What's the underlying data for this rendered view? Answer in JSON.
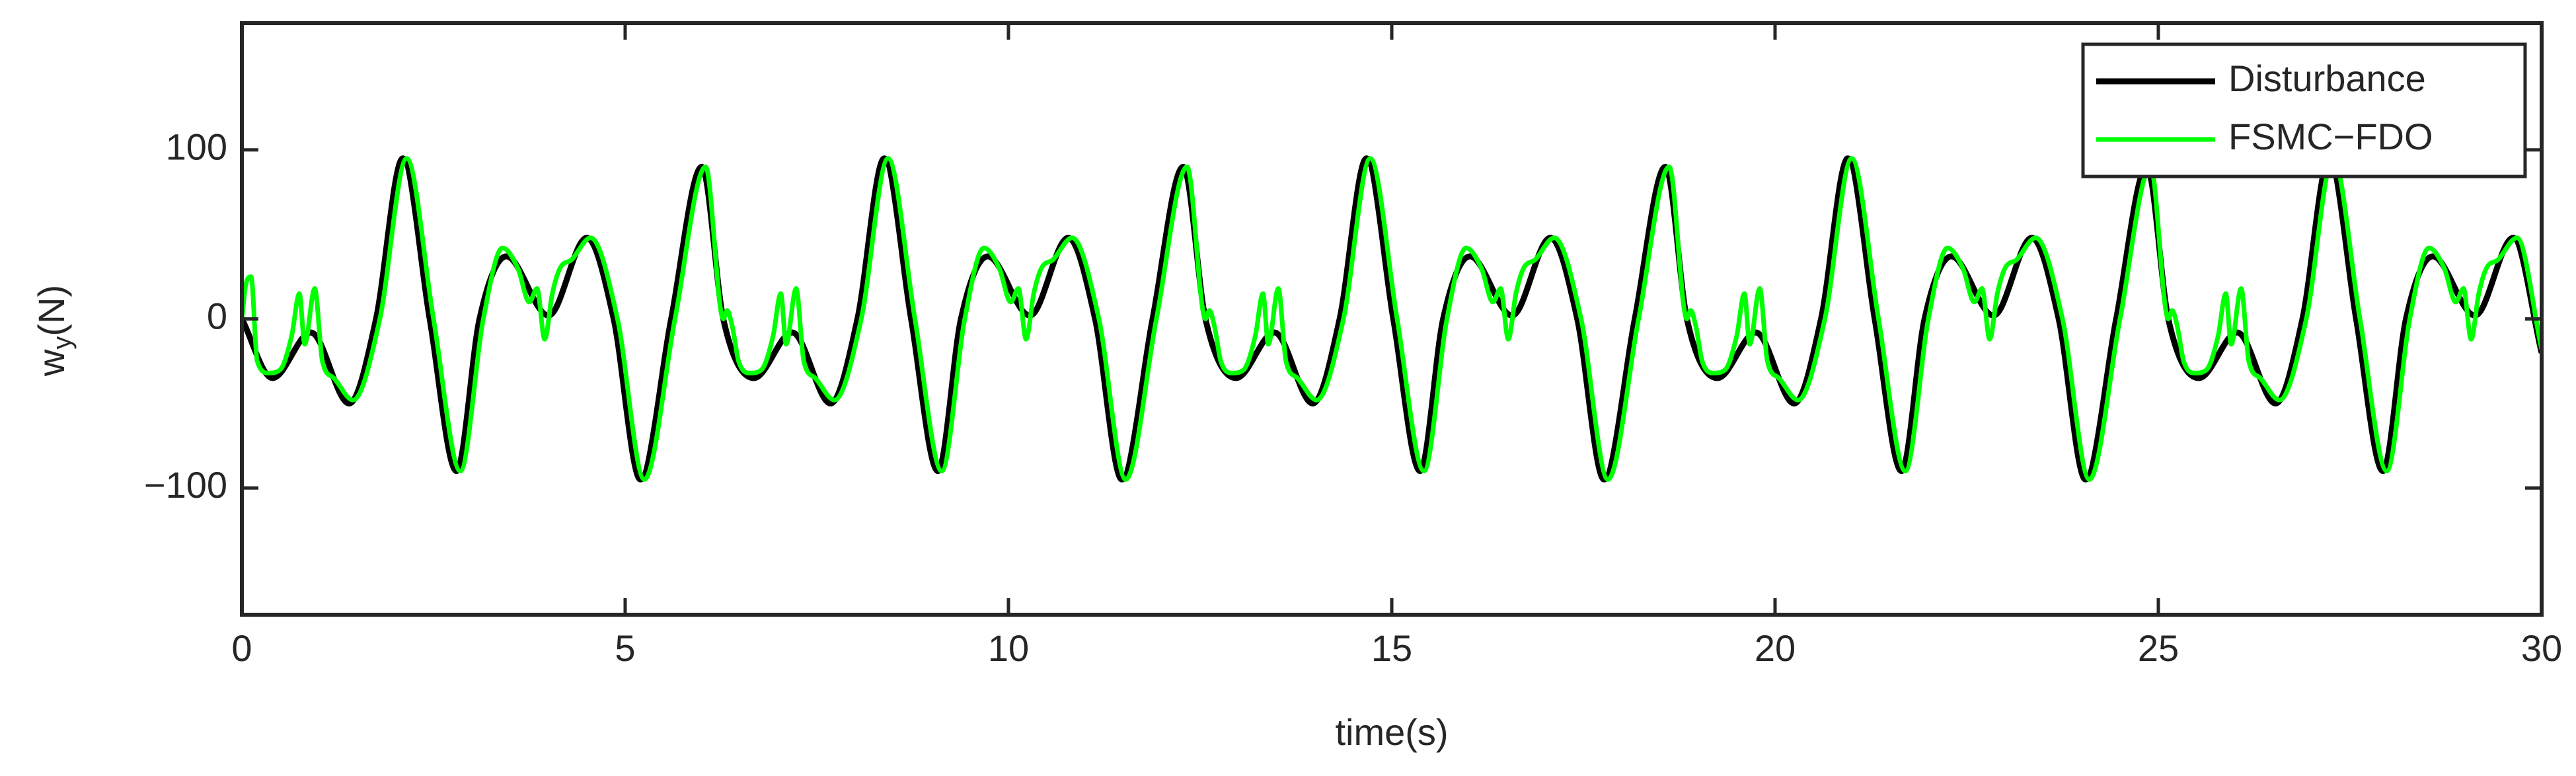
{
  "chart_data": {
    "type": "line",
    "xlabel": "time(s)",
    "ylabel": {
      "main": "w",
      "sub": "y",
      "unit": "(N)"
    },
    "xlim": [
      0,
      30
    ],
    "xticks": [
      0,
      5,
      10,
      15,
      20,
      25,
      30
    ],
    "ylim": [
      -175,
      175
    ],
    "yticks": [
      {
        "value": -100,
        "label": "−100"
      },
      0,
      100
    ],
    "legend": "northeast",
    "series": [
      {
        "name": "Disturbance",
        "color": "#000000",
        "x": [
          0,
          0.4,
          0.9,
          1.4,
          1.75,
          2.1,
          2.45,
          2.8,
          3.1,
          3.45,
          4.0,
          4.5,
          4.85,
          5.2,
          5.6,
          6.0,
          6.28,
          6.68,
          7.18,
          7.68,
          8.03,
          8.38,
          8.73,
          9.08,
          9.38,
          9.73,
          10.28,
          10.78,
          11.13,
          11.48,
          11.88,
          12.28,
          12.57,
          12.97,
          13.47,
          13.97,
          14.32,
          14.67,
          15.02,
          15.37,
          15.67,
          16.02,
          16.57,
          17.07,
          17.42,
          17.77,
          18.17,
          18.57,
          18.85,
          19.25,
          19.75,
          20.25,
          20.6,
          20.95,
          21.3,
          21.65,
          21.95,
          22.3,
          22.85,
          23.35,
          23.7,
          24.05,
          24.45,
          24.85,
          25.13,
          25.53,
          26.03,
          26.53,
          26.88,
          27.23,
          27.58,
          27.93,
          28.23,
          28.58,
          29.13,
          29.63,
          30
        ],
        "values": [
          0,
          -35,
          -8,
          -50,
          0,
          95,
          0,
          -90,
          0,
          37,
          2,
          48,
          0,
          -95,
          0,
          90,
          0,
          -35,
          -8,
          -50,
          0,
          95,
          0,
          -90,
          0,
          37,
          2,
          48,
          0,
          -95,
          0,
          90,
          0,
          -35,
          -8,
          -50,
          0,
          95,
          0,
          -90,
          0,
          37,
          2,
          48,
          0,
          -95,
          0,
          90,
          0,
          -35,
          -8,
          -50,
          0,
          95,
          0,
          -90,
          0,
          37,
          2,
          48,
          0,
          -95,
          0,
          90,
          0,
          -35,
          -8,
          -50,
          0,
          95,
          0,
          -90,
          0,
          37,
          2,
          48,
          -20
        ]
      },
      {
        "name": "FSMC−FDO",
        "color": "#00ff00",
        "x": [
          0,
          0.05,
          0.12,
          0.2,
          0.35,
          0.5,
          0.65,
          0.75,
          0.82,
          0.95,
          1.05,
          1.2,
          1.45,
          1.8,
          2.15,
          2.5,
          2.85,
          3.15,
          3.4,
          3.6,
          3.75,
          3.85,
          3.95,
          4.05,
          4.15,
          4.3,
          4.55,
          4.9,
          5.25,
          5.65,
          6.05,
          6.28,
          6.33,
          6.4,
          6.48,
          6.63,
          6.78,
          6.93,
          7.03,
          7.1,
          7.23,
          7.33,
          7.48,
          7.73,
          8.08,
          8.43,
          8.78,
          9.13,
          9.43,
          9.68,
          9.88,
          10.03,
          10.13,
          10.23,
          10.33,
          10.43,
          10.58,
          10.83,
          11.18,
          11.53,
          11.93,
          12.33,
          12.57,
          12.62,
          12.69,
          12.77,
          12.92,
          13.07,
          13.22,
          13.32,
          13.39,
          13.52,
          13.62,
          13.77,
          14.02,
          14.37,
          14.72,
          15.07,
          15.42,
          15.72,
          15.97,
          16.17,
          16.32,
          16.42,
          16.52,
          16.62,
          16.72,
          16.87,
          17.12,
          17.47,
          17.82,
          18.22,
          18.62,
          18.85,
          18.9,
          18.97,
          19.05,
          19.2,
          19.35,
          19.5,
          19.6,
          19.67,
          19.8,
          19.9,
          20.05,
          20.3,
          20.65,
          21.0,
          21.35,
          21.7,
          22.0,
          22.25,
          22.45,
          22.6,
          22.7,
          22.8,
          22.9,
          23.0,
          23.15,
          23.4,
          23.75,
          24.1,
          24.5,
          24.9,
          25.13,
          25.18,
          25.25,
          25.33,
          25.48,
          25.63,
          25.78,
          25.88,
          25.95,
          26.08,
          26.18,
          26.33,
          26.58,
          26.93,
          27.28,
          27.63,
          27.98,
          28.28,
          28.53,
          28.73,
          28.88,
          28.98,
          29.08,
          29.18,
          29.28,
          29.43,
          29.68,
          30
        ],
        "values": [
          0,
          20,
          25,
          -25,
          -32,
          -30,
          -10,
          15,
          -15,
          18,
          -25,
          -35,
          -48,
          0,
          95,
          0,
          -90,
          0,
          42,
          30,
          10,
          18,
          -12,
          15,
          30,
          35,
          48,
          0,
          -95,
          0,
          90,
          0,
          5,
          -5,
          -25,
          -32,
          -30,
          -10,
          15,
          -15,
          18,
          -25,
          -35,
          -48,
          0,
          95,
          0,
          -90,
          0,
          42,
          30,
          10,
          18,
          -12,
          15,
          30,
          35,
          48,
          0,
          -95,
          0,
          90,
          0,
          5,
          -5,
          -25,
          -32,
          -30,
          -10,
          15,
          -15,
          18,
          -25,
          -35,
          -48,
          0,
          95,
          0,
          -90,
          0,
          42,
          30,
          10,
          18,
          -12,
          15,
          30,
          35,
          48,
          0,
          -95,
          0,
          90,
          0,
          5,
          -5,
          -25,
          -32,
          -30,
          -10,
          15,
          -15,
          18,
          -25,
          -35,
          -48,
          0,
          95,
          0,
          -90,
          0,
          42,
          30,
          10,
          18,
          -12,
          15,
          30,
          35,
          48,
          0,
          -95,
          0,
          90,
          0,
          5,
          -5,
          -25,
          -32,
          -30,
          -10,
          15,
          -15,
          18,
          -25,
          -35,
          -48,
          0,
          95,
          0,
          -90,
          0,
          42,
          30,
          10,
          18,
          -12,
          15,
          30,
          35,
          48,
          -18
        ]
      }
    ]
  }
}
